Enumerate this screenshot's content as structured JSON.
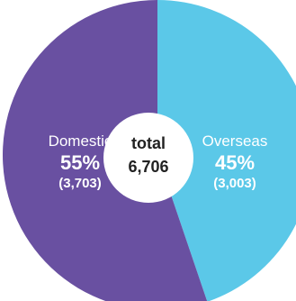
{
  "chart_data": {
    "type": "pie",
    "style": "donut",
    "center": {
      "label": "total",
      "value": "6,706"
    },
    "slices": [
      {
        "name": "Overseas",
        "value": 3003,
        "value_text": "(3,003)",
        "percent_text": "45%",
        "color": "#5bc8e8"
      },
      {
        "name": "Domestic",
        "value": 3703,
        "value_text": "(3,703)",
        "percent_text": "55%",
        "color": "#6950a1"
      }
    ]
  }
}
